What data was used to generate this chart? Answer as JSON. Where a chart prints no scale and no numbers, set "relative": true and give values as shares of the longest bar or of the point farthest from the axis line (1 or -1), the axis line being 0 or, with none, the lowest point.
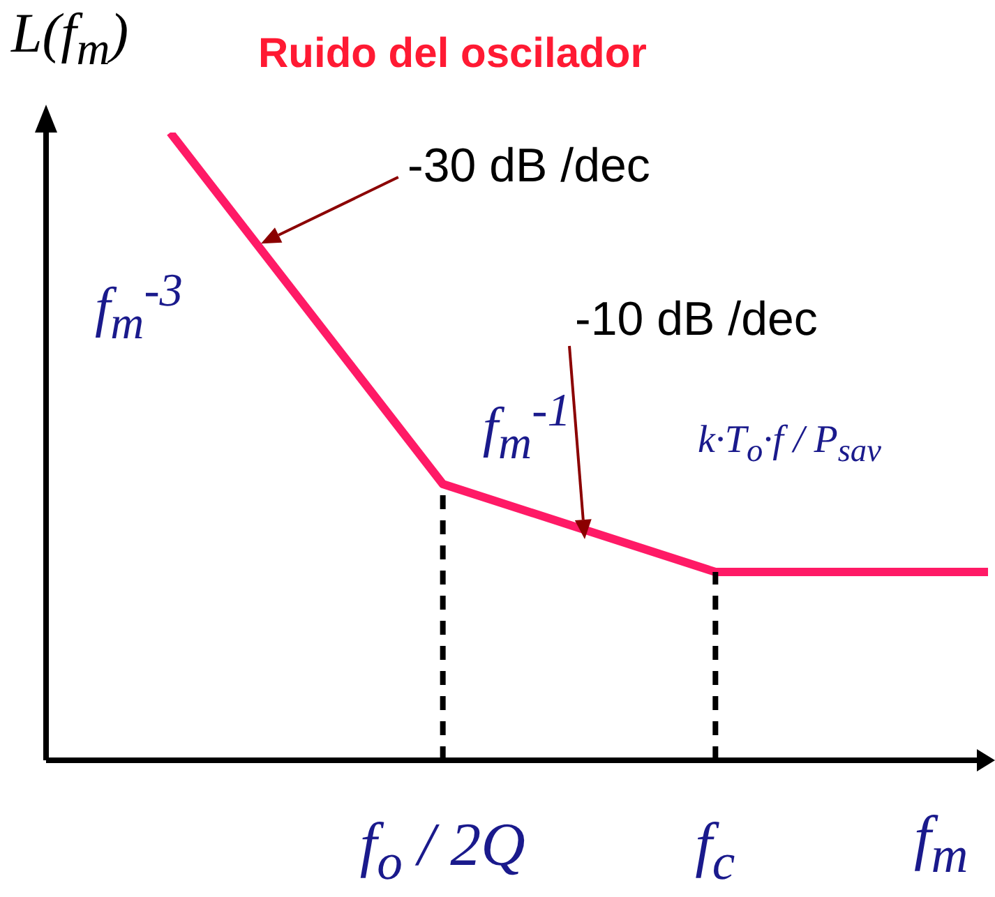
{
  "chart_data": {
    "type": "line",
    "title": "Ruido del oscilador",
    "ylabel": "L(f$_{m}$)",
    "xlabel": "f$_{m}$",
    "categories": [
      null,
      "f$_{o}$ / 2Q",
      "f$_{c}$",
      null
    ],
    "series": [
      {
        "color": "#ff1a66",
        "values": [
          1,
          0.44,
          0.3,
          0.3
        ]
      }
    ],
    "relative": true,
    "marker": "none",
    "line_style": "solid",
    "legend": false,
    "ref_lines": [
      {
        "axis": "x",
        "value": "f$_{o}$ / 2Q",
        "color": "#000000",
        "line_style": "dashed"
      },
      {
        "axis": "x",
        "value": "f$_{c}$",
        "color": "#000000",
        "line_style": "dashed"
      }
    ],
    "annotations": [
      "-30 dB /dec",
      "-10 dB /dec",
      "f$_{m}$$^{-3}$",
      "f$_{m}$$^{-1}$",
      "k·T$_{o}$·f / P$_{sav}$"
    ]
  }
}
